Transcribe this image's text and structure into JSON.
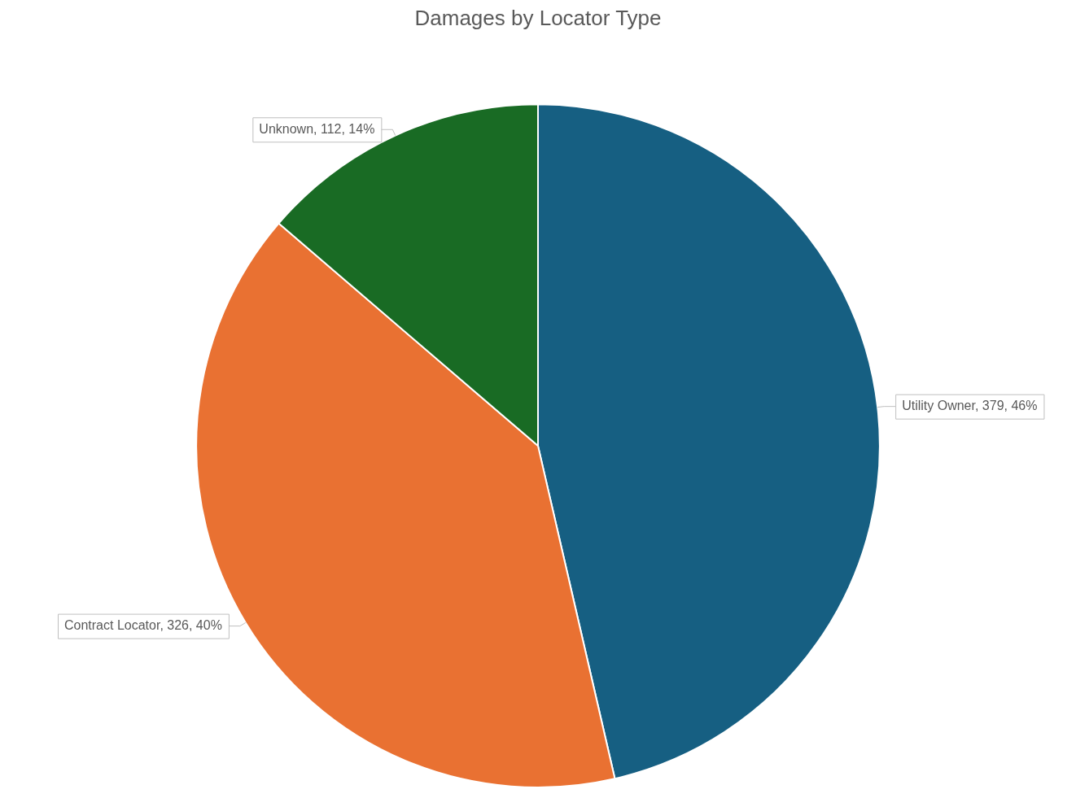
{
  "chart_data": {
    "type": "pie",
    "title": "Damages by Locator Type",
    "categories": [
      "Utility Owner",
      "Contract Locator",
      "Unknown"
    ],
    "values": [
      379,
      326,
      112
    ],
    "colors": [
      "#165f82",
      "#e97132",
      "#196b24"
    ],
    "value_labels": [
      "379, 46%",
      "326, 40%",
      "112, 14%"
    ],
    "legend": false
  }
}
